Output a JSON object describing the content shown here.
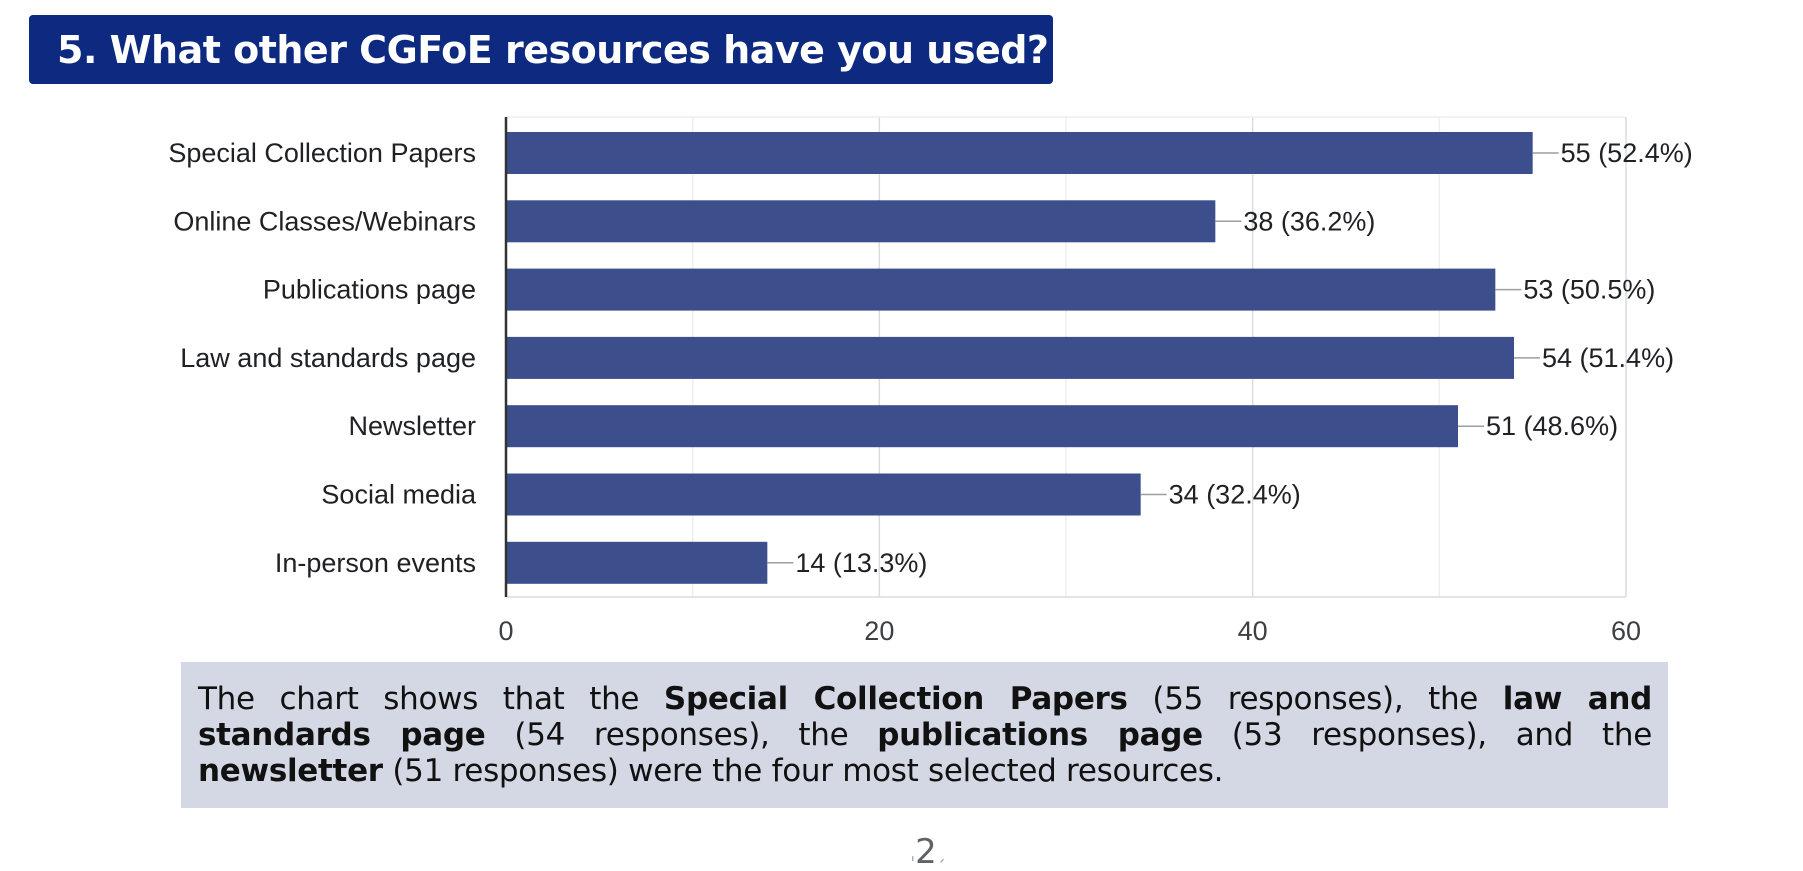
{
  "header": {
    "title": "5. What other CGFoE resources have you used?"
  },
  "colors": {
    "banner": "#0d2a80",
    "bar": "#3c4e8c",
    "summary_background": "#d4d8e4"
  },
  "chart_data": {
    "type": "bar",
    "orientation": "horizontal",
    "categories": [
      "Special Collection Papers",
      "Online Classes/Webinars",
      "Publications page",
      "Law and standards page",
      "Newsletter",
      "Social media",
      "In-person events"
    ],
    "values": [
      55,
      38,
      53,
      54,
      51,
      34,
      14
    ],
    "data_labels": [
      "55 (52.4%)",
      "38 (36.2%)",
      "53 (50.5%)",
      "54 (51.4%)",
      "51 (48.6%)",
      "34 (32.4%)",
      "14 (13.3%)"
    ],
    "x_ticks": [
      0,
      20,
      40,
      60
    ],
    "xlim": [
      0,
      60
    ],
    "grid": true,
    "legend": "none"
  },
  "summary": {
    "segments": [
      {
        "text": "The chart shows that the ",
        "bold": false
      },
      {
        "text": "Special Collection Papers",
        "bold": true
      },
      {
        "text": " (55 responses), the ",
        "bold": false
      },
      {
        "text": "law and standards page",
        "bold": true
      },
      {
        "text": " (54 responses), the ",
        "bold": false
      },
      {
        "text": "publications page",
        "bold": true
      },
      {
        "text": " (53 responses), and the ",
        "bold": false
      },
      {
        "text": "newsletter",
        "bold": true
      },
      {
        "text": " (51 responses) were the four most selected resources.",
        "bold": false
      }
    ]
  },
  "footer": {
    "page_number": "2"
  }
}
